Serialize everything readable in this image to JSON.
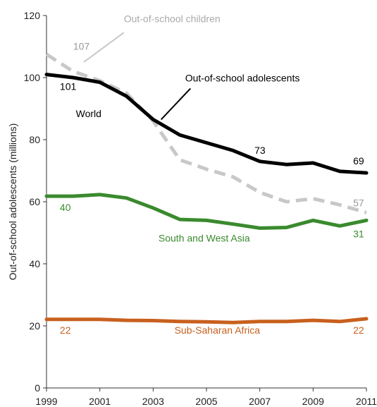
{
  "chart_data": {
    "type": "line",
    "ylabel": "Out-of-school adolescents (millions)",
    "ylim": [
      0,
      120
    ],
    "xlim": [
      1999,
      2011
    ],
    "y_ticks": [
      0,
      20,
      40,
      60,
      80,
      100,
      120
    ],
    "x_ticks": [
      1999,
      2001,
      2003,
      2005,
      2007,
      2009,
      2011
    ],
    "grid": false,
    "series": [
      {
        "key": "children",
        "name": "Out-of-school children",
        "color": "#c8c8c8",
        "dashed": true,
        "x": [
          1999,
          2000,
          2001,
          2002,
          2003,
          2004,
          2005,
          2006,
          2007,
          2008,
          2009,
          2010,
          2011
        ],
        "y": [
          107.5,
          102,
          99,
          95,
          86,
          73.5,
          70.5,
          68,
          63,
          60,
          61,
          59,
          56.5
        ]
      },
      {
        "key": "world",
        "name": "Out-of-school adolescents",
        "color": "#000000",
        "dashed": false,
        "x": [
          1999,
          2000,
          2001,
          2002,
          2003,
          2004,
          2005,
          2006,
          2007,
          2008,
          2009,
          2010,
          2011
        ],
        "y": [
          101,
          100,
          98.5,
          94,
          86.5,
          81.5,
          79,
          76.5,
          73,
          72,
          72.5,
          69.8,
          69.3
        ]
      },
      {
        "key": "swasia",
        "name": "South and West Asia",
        "color": "#3a8a2e",
        "dashed": false,
        "x": [
          1999,
          2000,
          2001,
          2002,
          2003,
          2004,
          2005,
          2006,
          2007,
          2008,
          2009,
          2010,
          2011
        ],
        "y": [
          61.8,
          61.8,
          62.3,
          61.2,
          58,
          54.3,
          54,
          52.8,
          51.5,
          51.7,
          54,
          52.2,
          54
        ]
      },
      {
        "key": "ssafrica",
        "name": "Sub-Saharan Africa",
        "color": "#c8601e",
        "dashed": false,
        "x": [
          1999,
          2000,
          2001,
          2002,
          2003,
          2004,
          2005,
          2006,
          2007,
          2008,
          2009,
          2010,
          2011
        ],
        "y": [
          22.1,
          22.1,
          22.1,
          21.8,
          21.7,
          21.4,
          21.3,
          21.1,
          21.4,
          21.4,
          21.8,
          21.4,
          22.3
        ]
      }
    ],
    "annotations": [
      {
        "key": "ann-children-name",
        "text": "Out-of-school children",
        "color": "#aaaaaa",
        "x": 2001.9,
        "y": 117.8
      },
      {
        "key": "ann-adolescents-name",
        "text": "Out-of-school adolescents",
        "color": "#000000",
        "x": 2004.2,
        "y": 98.8
      },
      {
        "key": "ann-world",
        "text": "World",
        "color": "#000000",
        "x": 2000.1,
        "y": 87.3
      },
      {
        "key": "ann-107",
        "text": "107",
        "color": "#999999",
        "x": 2000.0,
        "y": 109.0
      },
      {
        "key": "ann-101",
        "text": "101",
        "color": "#000000",
        "x": 1999.5,
        "y": 96.0
      },
      {
        "key": "ann-73",
        "text": "73",
        "color": "#000000",
        "x": 2006.8,
        "y": 75.5
      },
      {
        "key": "ann-69",
        "text": "69",
        "color": "#000000",
        "x": 2010.5,
        "y": 72.0
      },
      {
        "key": "ann-57",
        "text": "57",
        "color": "#999999",
        "x": 2010.5,
        "y": 58.5
      },
      {
        "key": "ann-40",
        "text": "40",
        "color": "#3a8a2e",
        "x": 1999.5,
        "y": 57.0
      },
      {
        "key": "ann-sw-name",
        "text": "South and West Asia",
        "color": "#3a8a2e",
        "x": 2003.2,
        "y": 47.2
      },
      {
        "key": "ann-31",
        "text": "31",
        "color": "#3a8a2e",
        "x": 2010.5,
        "y": 48.5
      },
      {
        "key": "ann-22-left",
        "text": "22",
        "color": "#c8601e",
        "x": 1999.5,
        "y": 17.5
      },
      {
        "key": "ann-ssa-name",
        "text": "Sub-Saharan Africa",
        "color": "#c8601e",
        "x": 2003.8,
        "y": 17.5
      },
      {
        "key": "ann-22-right",
        "text": "22",
        "color": "#c8601e",
        "x": 2010.5,
        "y": 17.5
      }
    ],
    "leader_lines": [
      {
        "key": "leader-children",
        "color": "#c8c8c8",
        "x1": 2000.4,
        "y1": 105,
        "x2": 2001.9,
        "y2": 114.5
      },
      {
        "key": "leader-adolescents",
        "color": "#000000",
        "x1": 2003.3,
        "y1": 86.5,
        "x2": 2004.4,
        "y2": 96.5
      }
    ]
  }
}
